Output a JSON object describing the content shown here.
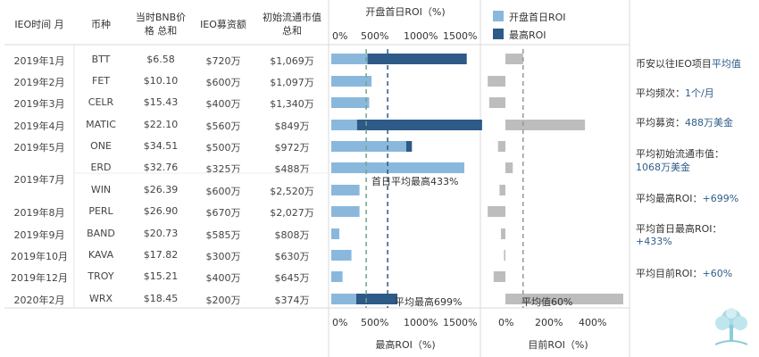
{
  "headers": {
    "month": "IEO时间 月",
    "coin": "币种",
    "bnb": "当时BNB价格 总和",
    "raise": "IEO募资额",
    "mcap": "初始流通市值 总和",
    "firstday_title": "开盘首日ROI（%)",
    "max_axis_title": "最高ROI（%)",
    "current_axis_title": "目前ROI（%)"
  },
  "legend": {
    "items": [
      {
        "label": "开盘首日ROI",
        "color": "#8ab8dc"
      },
      {
        "label": "最高ROI",
        "color": "#2d5a86"
      }
    ]
  },
  "axes": {
    "roi_ticks": [
      "0%",
      "500%",
      "1000%",
      "1500%"
    ],
    "current_ticks": [
      "0%",
      "200%",
      "400%"
    ]
  },
  "rows": [
    {
      "month": "2019年1月",
      "coin": "BTT",
      "bnb": "$6.58",
      "raise": "$720万",
      "mcap": "$1,069万"
    },
    {
      "month": "2019年2月",
      "coin": "FET",
      "bnb": "$10.10",
      "raise": "$600万",
      "mcap": "$1,097万"
    },
    {
      "month": "2019年3月",
      "coin": "CELR",
      "bnb": "$15.43",
      "raise": "$400万",
      "mcap": "$1,340万"
    },
    {
      "month": "2019年4月",
      "coin": "MATIC",
      "bnb": "$22.10",
      "raise": "$560万",
      "mcap": "$849万"
    },
    {
      "month": "2019年5月",
      "coin": "ONE",
      "bnb": "$34.51",
      "raise": "$500万",
      "mcap": "$972万"
    },
    {
      "month": "2019年7月",
      "coin": "ERD",
      "bnb": "$32.76",
      "raise": "$325万",
      "mcap": "$488万"
    },
    {
      "month": "",
      "coin": "WIN",
      "bnb": "$26.39",
      "raise": "$600万",
      "mcap": "$2,520万"
    },
    {
      "month": "2019年8月",
      "coin": "PERL",
      "bnb": "$26.90",
      "raise": "$670万",
      "mcap": "$2,027万"
    },
    {
      "month": "2019年9月",
      "coin": "BAND",
      "bnb": "$20.73",
      "raise": "$585万",
      "mcap": "$808万"
    },
    {
      "month": "2019年10月",
      "coin": "KAVA",
      "bnb": "$17.82",
      "raise": "$300万",
      "mcap": "$630万"
    },
    {
      "month": "2019年12月",
      "coin": "TROY",
      "bnb": "$15.21",
      "raise": "$400万",
      "mcap": "$645万"
    },
    {
      "month": "2020年2月",
      "coin": "WRX",
      "bnb": "$18.45",
      "raise": "$200万",
      "mcap": "$374万"
    }
  ],
  "chart_data": {
    "type": "bar",
    "orientation": "horizontal",
    "categories": [
      "BTT",
      "FET",
      "CELR",
      "MATIC",
      "ONE",
      "ERD",
      "WIN",
      "PERL",
      "BAND",
      "KAVA",
      "TROY",
      "WRX"
    ],
    "series": [
      {
        "name": "开盘首日ROI",
        "color": "#8ab8dc",
        "values": [
          450,
          500,
          470,
          320,
          930,
          1650,
          350,
          350,
          100,
          250,
          140,
          310
        ]
      },
      {
        "name": "最高ROI",
        "color": "#2d5a86",
        "values": [
          1680,
          0,
          0,
          1870,
          1000,
          0,
          0,
          0,
          0,
          0,
          0,
          820
        ]
      },
      {
        "name": "目前ROI",
        "color": "#bdbdbd",
        "values": [
          60,
          -60,
          -55,
          270,
          -25,
          25,
          -20,
          -60,
          -15,
          -5,
          -40,
          400
        ]
      }
    ],
    "roi_xlim": [
      0,
      1850
    ],
    "current_xlim": [
      -80,
      420
    ],
    "reference_lines": [
      {
        "label": "首日平均最高433%",
        "value": 433,
        "style": "dashed",
        "color": "#6fa58c"
      },
      {
        "label": "平均最高699%",
        "value": 699,
        "style": "dashed",
        "color": "#2d5a86"
      },
      {
        "label": "平均值60%",
        "value": 60,
        "style": "dashed",
        "color": "#999999"
      }
    ]
  },
  "summary": {
    "title_prefix": "币安以往IEO项目",
    "title_value": "平均值",
    "items": [
      {
        "label": "平均频次：",
        "value": "1个/月"
      },
      {
        "label": "平均募资：",
        "value": "488万美金"
      },
      {
        "label": "平均初始流通市值：",
        "value": "1068万美金"
      },
      {
        "label": "平均最高ROI：",
        "value": "+699%"
      },
      {
        "label": "平均首日最高ROI：",
        "value": "+433%"
      },
      {
        "label": "平均目前ROI：",
        "value": "+60%"
      }
    ]
  },
  "logo": {
    "icon": "tree-icon"
  }
}
